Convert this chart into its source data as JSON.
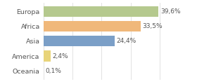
{
  "categories": [
    "Europa",
    "Africa",
    "Asia",
    "America",
    "Oceania"
  ],
  "values": [
    39.6,
    33.5,
    24.4,
    2.4,
    0.1
  ],
  "labels": [
    "39,6%",
    "33,5%",
    "24,4%",
    "2,4%",
    "0,1%"
  ],
  "bar_colors": [
    "#b5c98e",
    "#f0b87a",
    "#7b9fc7",
    "#e8d47a",
    "#dddddd"
  ],
  "background_color": "#ffffff",
  "xlim": [
    0,
    44
  ],
  "bar_height": 0.72,
  "label_fontsize": 6.5,
  "tick_fontsize": 6.8,
  "grid_color": "#dddddd",
  "grid_positions": [
    0,
    10,
    20,
    30,
    40
  ]
}
